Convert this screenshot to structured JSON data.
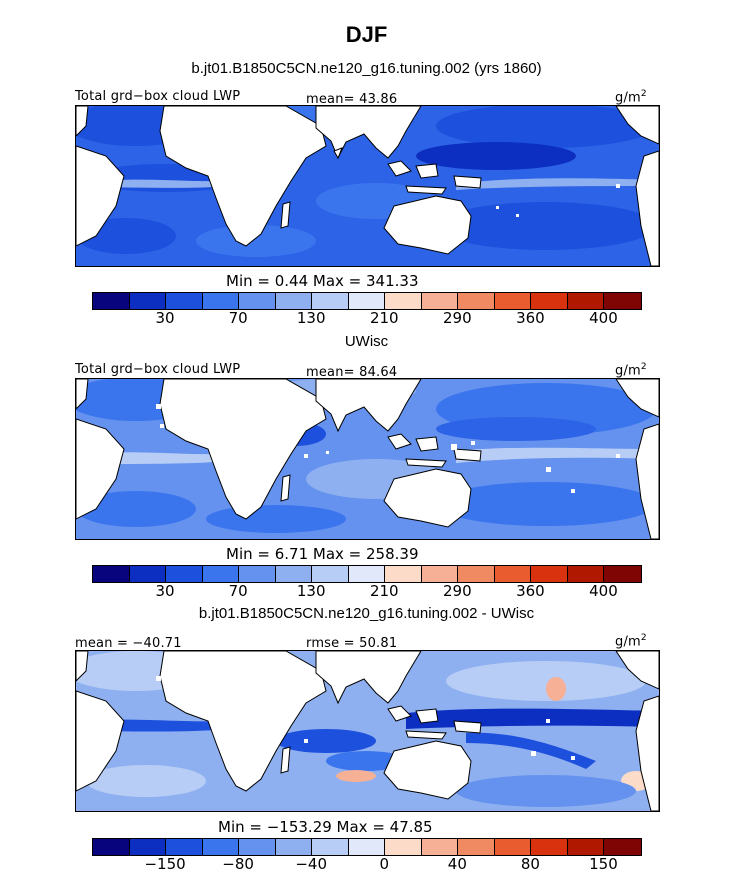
{
  "title": "DJF",
  "colors": [
    "#08047e",
    "#0c2fc1",
    "#1c50dd",
    "#3b75ee",
    "#6592ee",
    "#8fb0f0",
    "#b8cdf6",
    "#e0e8fa",
    "#fcdcc9",
    "#f6b095",
    "#ef8a63",
    "#e85c2f",
    "#d9320e",
    "#b01800",
    "#7e0504"
  ],
  "panels": [
    {
      "title": "b.jt01.B1850C5CN.ne120_g16.tuning.002 (yrs 1860)",
      "left_label": "Total grd−box cloud LWP",
      "center_label": "mean=  43.86",
      "units": "g/m",
      "units_sup": "2",
      "minmax": "Min =     0.44  Max  =  341.33",
      "tick_labels": [
        "30",
        "70",
        "130",
        "210",
        "290",
        "360",
        "400"
      ]
    },
    {
      "title": "UWisc",
      "left_label": "Total grd−box cloud LWP",
      "center_label": "mean=  84.64",
      "units": "g/m",
      "units_sup": "2",
      "minmax": "Min =     6.71  Max  =  258.39",
      "tick_labels": [
        "30",
        "70",
        "130",
        "210",
        "290",
        "360",
        "400"
      ]
    },
    {
      "title": "b.jt01.B1850C5CN.ne120_g16.tuning.002 - UWisc",
      "left_label": "mean = −40.71",
      "center_label": "rmse =  50.81",
      "units": "g/m",
      "units_sup": "2",
      "minmax": "Min  =  −153.29  Max  =    47.85",
      "tick_labels": [
        "−150",
        "−80",
        "−40",
        "0",
        "40",
        "80",
        "150"
      ]
    }
  ]
}
